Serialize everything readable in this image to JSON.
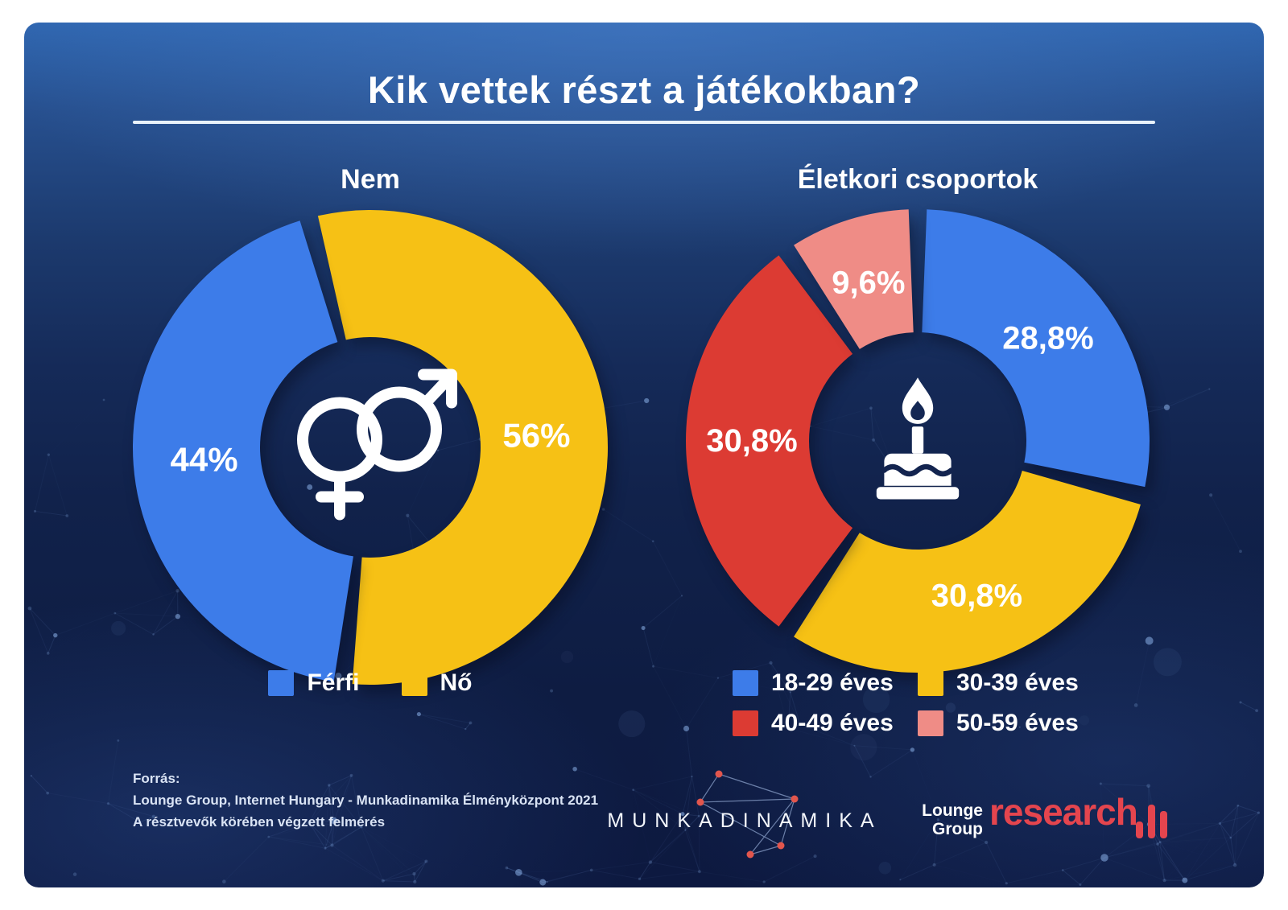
{
  "title": "Kik vettek részt a játékokban?",
  "chart_data": [
    {
      "type": "donut",
      "title": "Nem",
      "center_icon": "gender-icon",
      "segments": [
        {
          "label": "Nő",
          "value": 56,
          "display": "56%",
          "color": "#F6C115"
        },
        {
          "label": "Férfi",
          "value": 44,
          "display": "44%",
          "color": "#3D7CE9"
        }
      ],
      "legend": [
        {
          "label": "Férfi",
          "color": "#3D7CE9"
        },
        {
          "label": "Nő",
          "color": "#F6C115"
        }
      ],
      "legend_position": "bottom"
    },
    {
      "type": "donut",
      "title": "Életkori csoportok",
      "center_icon": "birthday-cake-icon",
      "segments": [
        {
          "label": "18-29 éves",
          "value": 28.8,
          "display": "28,8%",
          "color": "#3D7CE9"
        },
        {
          "label": "30-39 éves",
          "value": 30.8,
          "display": "30,8%",
          "color": "#F6C115"
        },
        {
          "label": "40-49 éves",
          "value": 30.8,
          "display": "30,8%",
          "color": "#DC3B33"
        },
        {
          "label": "50-59 éves",
          "value": 9.6,
          "display": "9,6%",
          "color": "#EF8C86"
        }
      ],
      "legend": [
        {
          "label": "18-29 éves",
          "color": "#3D7CE9"
        },
        {
          "label": "30-39 éves",
          "color": "#F6C115"
        },
        {
          "label": "40-49 éves",
          "color": "#DC3B33"
        },
        {
          "label": "50-59 éves",
          "color": "#EF8C86"
        }
      ],
      "legend_position": "bottom"
    }
  ],
  "source": {
    "heading": "Forrás:",
    "line1": "Lounge Group, Internet Hungary - Munkadinamika Élményközpont 2021",
    "line2": "A résztvevők körében végzett felmérés"
  },
  "footer": {
    "munkadinamika": "MUNKADINAMIKA",
    "lounge_line1": "Lounge",
    "lounge_line2": "Group",
    "research": "research"
  },
  "colors": {
    "blue": "#3D7CE9",
    "yellow": "#F6C115",
    "red": "#DC3B33",
    "pink": "#EF8C86",
    "background_top": "#2F66B0",
    "background_bottom": "#0D1940",
    "text": "#FFFFFF",
    "research_red": "#E4454E"
  }
}
